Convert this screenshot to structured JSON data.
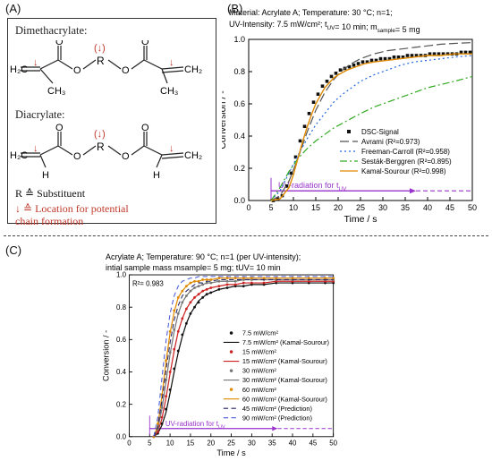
{
  "labels": {
    "A": "(A)",
    "B": "(B)",
    "C": "(C)"
  },
  "panel_a": {
    "dimethacrylate": "Dimethacrylate:",
    "diacrylate": "Diacrylate:",
    "r_atom": "R",
    "o_atom": "O",
    "h_atom": "H",
    "r_note_symbol": "R ≙",
    "r_note_text": "Substituent",
    "arrow_note_symbol": "↓ ≙",
    "arrow_note_text1": "Location for potential",
    "arrow_note_text2": "chain formation",
    "chain_marker": "↓",
    "accent_color": "#c0392b"
  },
  "chart_data": [
    {
      "id": "B",
      "type": "line",
      "title_line1": "Material: Acrylate A; Temperature: 30 °C; n=1;",
      "title_line2": "UV-Intensity: 7.5 mW/cm²; tUV= 10 min; msample= 5 mg",
      "xlabel": "Time / s",
      "ylabel": "Conversion / -",
      "xlim": [
        0,
        50
      ],
      "ylim": [
        0,
        1.0
      ],
      "xticks": [
        "0",
        "5",
        "10",
        "15",
        "20",
        "25",
        "30",
        "35",
        "40",
        "45",
        "50"
      ],
      "yticks": [
        "0.0",
        "0.2",
        "0.4",
        "0.6",
        "0.8",
        "1.0"
      ],
      "annotation": "UV-radiation for tUV",
      "series": [
        {
          "name": "DSC-Signal",
          "style": "markers",
          "color": "#111111",
          "x": [
            5.5,
            6.5,
            7.5,
            8.5,
            9.5,
            10.5,
            11.5,
            12.5,
            13.5,
            14.5,
            15.5,
            16.5,
            17.5,
            18.5,
            19.5,
            20.5,
            21.5,
            22.5,
            23.5,
            24.5,
            25.5,
            26.5,
            27.5,
            28.5,
            29.5,
            30.5,
            31.5,
            32.5,
            33.5,
            34.5,
            35.5,
            36.5,
            37.5,
            38.5,
            39.5,
            40.5,
            41.5,
            42.5,
            43.5,
            44.5,
            45.5,
            46.5,
            47.5,
            48.5,
            49.5
          ],
          "y": [
            0.0,
            0.01,
            0.03,
            0.09,
            0.17,
            0.27,
            0.37,
            0.46,
            0.54,
            0.61,
            0.66,
            0.71,
            0.74,
            0.77,
            0.79,
            0.81,
            0.82,
            0.83,
            0.84,
            0.85,
            0.86,
            0.86,
            0.87,
            0.87,
            0.88,
            0.88,
            0.88,
            0.89,
            0.89,
            0.89,
            0.9,
            0.9,
            0.9,
            0.9,
            0.9,
            0.91,
            0.91,
            0.91,
            0.91,
            0.91,
            0.91,
            0.91,
            0.92,
            0.92,
            0.92
          ]
        },
        {
          "name": "Avrami (R²=0.973)",
          "style": "longdash",
          "color": "#555555",
          "x": [
            5,
            7,
            9,
            11,
            13,
            15,
            17,
            19,
            21,
            23,
            25,
            28,
            31,
            34,
            37,
            40,
            43,
            46,
            50
          ],
          "y": [
            0,
            0.03,
            0.12,
            0.26,
            0.42,
            0.56,
            0.67,
            0.75,
            0.81,
            0.85,
            0.88,
            0.91,
            0.93,
            0.94,
            0.95,
            0.96,
            0.97,
            0.975,
            0.98
          ]
        },
        {
          "name": "Freeman-Carroll (R²=0.958)",
          "style": "dot",
          "color": "#2266dd",
          "x": [
            5,
            7,
            9,
            11,
            13,
            15,
            17,
            19,
            21,
            23,
            25,
            28,
            31,
            34,
            37,
            40,
            43,
            46,
            50
          ],
          "y": [
            0,
            0.06,
            0.17,
            0.28,
            0.38,
            0.47,
            0.54,
            0.61,
            0.66,
            0.7,
            0.74,
            0.78,
            0.81,
            0.84,
            0.86,
            0.87,
            0.88,
            0.89,
            0.9
          ]
        },
        {
          "name": "Sesták-Berggren (R²=0.895)",
          "style": "dashdot",
          "color": "#33aa22",
          "x": [
            5,
            7,
            9,
            11,
            13,
            15,
            17,
            19,
            21,
            23,
            25,
            28,
            31,
            34,
            37,
            40,
            43,
            46,
            50
          ],
          "y": [
            0,
            0.08,
            0.18,
            0.26,
            0.32,
            0.37,
            0.41,
            0.45,
            0.48,
            0.51,
            0.54,
            0.58,
            0.61,
            0.64,
            0.67,
            0.7,
            0.72,
            0.74,
            0.77
          ]
        },
        {
          "name": "Kamal-Sourour (R²=0.998)",
          "style": "solid",
          "color": "#e08a00",
          "x": [
            5,
            7,
            9,
            10,
            11,
            12,
            13,
            14,
            15,
            16,
            17,
            18,
            19,
            20,
            22,
            24,
            26,
            28,
            31,
            34,
            37,
            40,
            43,
            46,
            50
          ],
          "y": [
            0,
            0.01,
            0.08,
            0.16,
            0.26,
            0.36,
            0.45,
            0.53,
            0.6,
            0.65,
            0.7,
            0.73,
            0.76,
            0.78,
            0.81,
            0.83,
            0.85,
            0.86,
            0.87,
            0.88,
            0.89,
            0.9,
            0.9,
            0.91,
            0.91
          ]
        }
      ],
      "legend_position": "bottom-right",
      "uv_arrow": {
        "x_start": 5,
        "x_solid_end": 36,
        "x_dash_end": 50,
        "y": 0.06,
        "color": "#9933cc"
      }
    },
    {
      "id": "C",
      "type": "line",
      "title_line1": "Acrylate A; Temperature: 90 °C; n=1 (per UV-intensity);",
      "title_line2": "intial sample mass msample= 5 mg; tUV= 10 min",
      "r2_text": "R²= 0.983",
      "xlabel": "Time / s",
      "ylabel": "Conversion / -",
      "xlim": [
        0,
        50
      ],
      "ylim": [
        0,
        1.0
      ],
      "xticks": [
        "0",
        "5",
        "10",
        "15",
        "20",
        "25",
        "30",
        "35",
        "40",
        "45",
        "50"
      ],
      "yticks": [
        "0.0",
        "0.2",
        "0.4",
        "0.6",
        "0.8",
        "1.0"
      ],
      "annotation": "UV-radiation for tUV",
      "uv_arrow": {
        "x_start": 5,
        "x_solid_end": 35,
        "x_dash_end": 50,
        "y": 0.05,
        "color": "#9933cc"
      },
      "legend_position": "right-center",
      "series": [
        {
          "name": "7.5 mW/cm²",
          "style": "markers",
          "color": "#111111",
          "x": [
            6,
            7,
            8,
            9,
            10,
            11,
            12,
            13,
            14,
            15,
            16,
            17,
            18,
            19,
            20,
            22,
            24,
            26,
            28,
            30,
            33,
            36,
            40,
            44,
            48,
            50
          ],
          "y": [
            0.0,
            0.02,
            0.08,
            0.17,
            0.29,
            0.42,
            0.53,
            0.63,
            0.7,
            0.76,
            0.8,
            0.83,
            0.86,
            0.88,
            0.89,
            0.91,
            0.92,
            0.93,
            0.93,
            0.94,
            0.94,
            0.95,
            0.95,
            0.95,
            0.95,
            0.95
          ]
        },
        {
          "name": "7.5 mW/cm² (Kamal-Sourour)",
          "style": "solid",
          "color": "#111111",
          "x": [
            6,
            7,
            8,
            9,
            10,
            11,
            12,
            13,
            14,
            15,
            16,
            17,
            18,
            19,
            20,
            22,
            24,
            26,
            28,
            30,
            33,
            36,
            40,
            44,
            48,
            50
          ],
          "y": [
            0.0,
            0.02,
            0.07,
            0.15,
            0.27,
            0.4,
            0.52,
            0.62,
            0.7,
            0.76,
            0.8,
            0.84,
            0.86,
            0.88,
            0.89,
            0.91,
            0.92,
            0.93,
            0.93,
            0.94,
            0.94,
            0.95,
            0.95,
            0.95,
            0.95,
            0.95
          ]
        },
        {
          "name": "15 mW/cm²",
          "style": "markers",
          "color": "#cc2222",
          "x": [
            6,
            7,
            8,
            9,
            10,
            11,
            12,
            13,
            14,
            15,
            16,
            17,
            18,
            19,
            20,
            22,
            24,
            26,
            28,
            30,
            33,
            36,
            40,
            44,
            48,
            50
          ],
          "y": [
            0.0,
            0.03,
            0.12,
            0.25,
            0.4,
            0.54,
            0.65,
            0.73,
            0.79,
            0.83,
            0.86,
            0.88,
            0.9,
            0.91,
            0.92,
            0.93,
            0.94,
            0.94,
            0.95,
            0.95,
            0.95,
            0.96,
            0.96,
            0.96,
            0.96,
            0.96
          ]
        },
        {
          "name": "15 mW/cm² (Kamal-Sourour)",
          "style": "solid",
          "color": "#cc2222",
          "x": [
            6,
            7,
            8,
            9,
            10,
            11,
            12,
            13,
            14,
            15,
            16,
            17,
            18,
            19,
            20,
            22,
            24,
            26,
            28,
            30,
            33,
            36,
            40,
            44,
            48,
            50
          ],
          "y": [
            0.0,
            0.03,
            0.11,
            0.24,
            0.39,
            0.53,
            0.65,
            0.73,
            0.79,
            0.83,
            0.86,
            0.88,
            0.9,
            0.91,
            0.92,
            0.93,
            0.94,
            0.94,
            0.95,
            0.95,
            0.95,
            0.96,
            0.96,
            0.96,
            0.96,
            0.96
          ]
        },
        {
          "name": "30 mW/cm²",
          "style": "markers",
          "color": "#777777",
          "x": [
            6,
            7,
            8,
            9,
            10,
            11,
            12,
            13,
            14,
            15,
            16,
            17,
            18,
            19,
            20,
            22,
            24,
            26,
            28,
            30,
            33,
            36,
            40,
            44,
            48,
            50
          ],
          "y": [
            0.0,
            0.05,
            0.18,
            0.35,
            0.52,
            0.66,
            0.76,
            0.83,
            0.87,
            0.9,
            0.92,
            0.93,
            0.94,
            0.95,
            0.95,
            0.96,
            0.96,
            0.96,
            0.97,
            0.97,
            0.97,
            0.97,
            0.97,
            0.97,
            0.97,
            0.97
          ]
        },
        {
          "name": "30 mW/cm² (Kamal-Sourour)",
          "style": "solid",
          "color": "#777777",
          "x": [
            6,
            7,
            8,
            9,
            10,
            11,
            12,
            13,
            14,
            15,
            16,
            17,
            18,
            19,
            20,
            22,
            24,
            26,
            28,
            30,
            33,
            36,
            40,
            44,
            48,
            50
          ],
          "y": [
            0.0,
            0.05,
            0.17,
            0.34,
            0.51,
            0.65,
            0.76,
            0.83,
            0.87,
            0.9,
            0.92,
            0.93,
            0.94,
            0.95,
            0.95,
            0.96,
            0.96,
            0.96,
            0.97,
            0.97,
            0.97,
            0.97,
            0.97,
            0.97,
            0.97,
            0.97
          ]
        },
        {
          "name": "60 mW/cm²",
          "style": "markers",
          "color": "#e08a00",
          "x": [
            6,
            7,
            8,
            9,
            10,
            11,
            12,
            13,
            14,
            15,
            16,
            17,
            18,
            19,
            20,
            22,
            24,
            26,
            28,
            30,
            33,
            36,
            40,
            44,
            48,
            50
          ],
          "y": [
            0.0,
            0.08,
            0.26,
            0.47,
            0.65,
            0.78,
            0.86,
            0.9,
            0.93,
            0.95,
            0.96,
            0.96,
            0.97,
            0.97,
            0.97,
            0.98,
            0.98,
            0.98,
            0.98,
            0.98,
            0.98,
            0.98,
            0.98,
            0.98,
            0.98,
            0.98
          ]
        },
        {
          "name": "60 mW/cm² (Kamal-Sourour)",
          "style": "solid",
          "color": "#e08a00",
          "x": [
            6,
            7,
            8,
            9,
            10,
            11,
            12,
            13,
            14,
            15,
            16,
            17,
            18,
            19,
            20,
            22,
            24,
            26,
            28,
            30,
            33,
            36,
            40,
            44,
            48,
            50
          ],
          "y": [
            0.0,
            0.07,
            0.25,
            0.46,
            0.64,
            0.77,
            0.86,
            0.9,
            0.93,
            0.95,
            0.96,
            0.96,
            0.97,
            0.97,
            0.97,
            0.98,
            0.98,
            0.98,
            0.98,
            0.98,
            0.98,
            0.98,
            0.98,
            0.98,
            0.98,
            0.98
          ]
        },
        {
          "name": "45 mW/cm² (Prediction)",
          "style": "dash",
          "color": "#222266",
          "x": [
            6,
            7,
            8,
            9,
            10,
            11,
            12,
            13,
            14,
            15,
            16,
            17,
            18,
            19,
            20,
            22,
            24,
            26,
            28,
            30,
            33,
            36,
            40,
            44,
            48,
            50
          ],
          "y": [
            0.0,
            0.06,
            0.22,
            0.41,
            0.58,
            0.72,
            0.81,
            0.87,
            0.9,
            0.92,
            0.94,
            0.95,
            0.95,
            0.96,
            0.96,
            0.97,
            0.97,
            0.97,
            0.97,
            0.97,
            0.97,
            0.97,
            0.97,
            0.97,
            0.97,
            0.97
          ]
        },
        {
          "name": "90 mW/cm² (Prediction)",
          "style": "dash",
          "color": "#4a5bd6",
          "x": [
            6,
            7,
            8,
            9,
            10,
            11,
            12,
            13,
            14,
            15,
            16,
            17,
            18,
            19,
            20,
            22,
            24,
            26,
            28,
            30,
            33,
            36,
            40,
            44,
            48,
            50
          ],
          "y": [
            0.0,
            0.12,
            0.36,
            0.59,
            0.76,
            0.87,
            0.93,
            0.96,
            0.97,
            0.98,
            0.98,
            0.99,
            0.99,
            0.99,
            0.99,
            0.99,
            0.99,
            0.99,
            0.99,
            0.99,
            0.99,
            0.99,
            0.99,
            0.99,
            0.99,
            0.99
          ]
        }
      ]
    }
  ]
}
